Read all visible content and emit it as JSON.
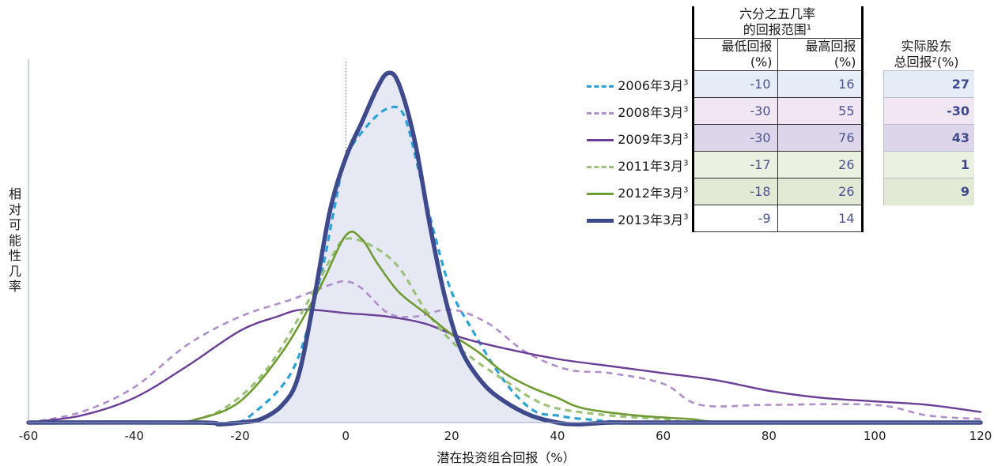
{
  "chart_data": {
    "type": "line",
    "ylabel": "相对可能性几率",
    "xlabel": "潜在投资组合回报（%）",
    "xlim": [
      -60,
      120
    ],
    "x_ticks": [
      "-60",
      "-40",
      "-20",
      "0",
      "20",
      "40",
      "60",
      "80",
      "100",
      "120"
    ],
    "zero_line": "dotted",
    "grid": false,
    "series": [
      {
        "name": "2006年3月",
        "color": "#2aa2d6",
        "dash": "dashed",
        "points": [
          [
            -60,
            0
          ],
          [
            -30,
            0
          ],
          [
            -22,
            0
          ],
          [
            -18,
            0.02
          ],
          [
            -10,
            0.15
          ],
          [
            -5,
            0.4
          ],
          [
            -2,
            0.62
          ],
          [
            0,
            0.75
          ],
          [
            4,
            0.84
          ],
          [
            8,
            0.89
          ],
          [
            11,
            0.87
          ],
          [
            14,
            0.7
          ],
          [
            17,
            0.52
          ],
          [
            20,
            0.37
          ],
          [
            24,
            0.26
          ],
          [
            28,
            0.16
          ],
          [
            32,
            0.08
          ],
          [
            36,
            0.03
          ],
          [
            40,
            0.02
          ],
          [
            45,
            0.01
          ],
          [
            60,
            0
          ],
          [
            120,
            0
          ]
        ]
      },
      {
        "name": "2008年3月",
        "color": "#b08ec9",
        "dash": "dashed",
        "points": [
          [
            -60,
            0
          ],
          [
            -50,
            0.03
          ],
          [
            -40,
            0.1
          ],
          [
            -30,
            0.22
          ],
          [
            -20,
            0.3
          ],
          [
            -10,
            0.35
          ],
          [
            -3,
            0.39
          ],
          [
            0,
            0.4
          ],
          [
            3,
            0.38
          ],
          [
            8,
            0.31
          ],
          [
            13,
            0.3
          ],
          [
            20,
            0.32
          ],
          [
            27,
            0.28
          ],
          [
            34,
            0.2
          ],
          [
            42,
            0.15
          ],
          [
            50,
            0.14
          ],
          [
            60,
            0.11
          ],
          [
            67,
            0.05
          ],
          [
            80,
            0.05
          ],
          [
            100,
            0.05
          ],
          [
            110,
            0.02
          ],
          [
            120,
            0.01
          ]
        ]
      },
      {
        "name": "2009年3月",
        "color": "#6a3d97",
        "dash": "solid",
        "points": [
          [
            -60,
            0
          ],
          [
            -50,
            0.02
          ],
          [
            -40,
            0.07
          ],
          [
            -30,
            0.16
          ],
          [
            -20,
            0.26
          ],
          [
            -13,
            0.3
          ],
          [
            -8,
            0.32
          ],
          [
            0,
            0.31
          ],
          [
            8,
            0.3
          ],
          [
            15,
            0.28
          ],
          [
            22,
            0.24
          ],
          [
            30,
            0.21
          ],
          [
            40,
            0.18
          ],
          [
            50,
            0.16
          ],
          [
            60,
            0.14
          ],
          [
            70,
            0.12
          ],
          [
            80,
            0.09
          ],
          [
            90,
            0.07
          ],
          [
            100,
            0.06
          ],
          [
            110,
            0.05
          ],
          [
            120,
            0.03
          ]
        ]
      },
      {
        "name": "2011年3月",
        "color": "#9cc27a",
        "dash": "dashed",
        "points": [
          [
            -60,
            0
          ],
          [
            -35,
            0
          ],
          [
            -28,
            0.01
          ],
          [
            -22,
            0.05
          ],
          [
            -15,
            0.15
          ],
          [
            -8,
            0.32
          ],
          [
            -3,
            0.46
          ],
          [
            0,
            0.52
          ],
          [
            5,
            0.5
          ],
          [
            10,
            0.44
          ],
          [
            15,
            0.32
          ],
          [
            20,
            0.23
          ],
          [
            25,
            0.17
          ],
          [
            30,
            0.12
          ],
          [
            35,
            0.07
          ],
          [
            40,
            0.04
          ],
          [
            50,
            0.02
          ],
          [
            60,
            0.01
          ],
          [
            70,
            0
          ],
          [
            120,
            0
          ]
        ]
      },
      {
        "name": "2012年3月",
        "color": "#6e9b32",
        "dash": "solid",
        "points": [
          [
            -60,
            0
          ],
          [
            -35,
            0
          ],
          [
            -28,
            0.01
          ],
          [
            -20,
            0.06
          ],
          [
            -12,
            0.2
          ],
          [
            -5,
            0.38
          ],
          [
            0,
            0.53
          ],
          [
            3,
            0.52
          ],
          [
            6,
            0.45
          ],
          [
            10,
            0.37
          ],
          [
            15,
            0.31
          ],
          [
            20,
            0.25
          ],
          [
            25,
            0.2
          ],
          [
            30,
            0.14
          ],
          [
            35,
            0.1
          ],
          [
            40,
            0.07
          ],
          [
            45,
            0.04
          ],
          [
            55,
            0.02
          ],
          [
            65,
            0.01
          ],
          [
            75,
            0
          ],
          [
            120,
            0
          ]
        ]
      },
      {
        "name": "2013年3月",
        "color": "#3e4a8c",
        "dash": "solid",
        "fill": true,
        "points": [
          [
            -60,
            0
          ],
          [
            -28,
            0
          ],
          [
            -24,
            -0.005
          ],
          [
            -20,
            0
          ],
          [
            -16,
            0.01
          ],
          [
            -12,
            0.05
          ],
          [
            -9,
            0.13
          ],
          [
            -6,
            0.35
          ],
          [
            -3,
            0.6
          ],
          [
            0,
            0.75
          ],
          [
            3,
            0.85
          ],
          [
            6,
            0.95
          ],
          [
            8,
            0.99
          ],
          [
            10,
            0.96
          ],
          [
            13,
            0.8
          ],
          [
            16,
            0.55
          ],
          [
            19,
            0.34
          ],
          [
            22,
            0.2
          ],
          [
            26,
            0.11
          ],
          [
            30,
            0.06
          ],
          [
            35,
            0.02
          ],
          [
            40,
            0
          ],
          [
            44,
            -0.005
          ],
          [
            50,
            0
          ],
          [
            60,
            0
          ],
          [
            120,
            0
          ]
        ]
      }
    ]
  },
  "legend_table": {
    "group_header": [
      "六分之五几率",
      "的回报范围¹"
    ],
    "col_min": [
      "最低回报",
      "(%)"
    ],
    "col_max": [
      "最高回报",
      "(%)"
    ],
    "col_actual": [
      "实际股东",
      "总回报²(%)"
    ],
    "rows": [
      {
        "name": "2006年3月",
        "sup": "3",
        "min": "-10",
        "max": "16",
        "actual": "27",
        "color": "#2aa2d6",
        "dash": "dashed",
        "bg": "#e5eef8"
      },
      {
        "name": "2008年3月",
        "sup": "3",
        "min": "-30",
        "max": "55",
        "actual": "-30",
        "color": "#b08ec9",
        "dash": "dashed",
        "bg": "#f0e7f3"
      },
      {
        "name": "2009年3月",
        "sup": "3",
        "min": "-30",
        "max": "76",
        "actual": "43",
        "color": "#6a3d97",
        "dash": "solid",
        "bg": "#ddd6ea"
      },
      {
        "name": "2011年3月",
        "sup": "3",
        "min": "-17",
        "max": "26",
        "actual": "1",
        "color": "#9cc27a",
        "dash": "dashed",
        "bg": "#eaf1e1"
      },
      {
        "name": "2012年3月",
        "sup": "3",
        "min": "-18",
        "max": "26",
        "actual": "9",
        "color": "#6e9b32",
        "dash": "solid",
        "bg": "#e2ead6"
      },
      {
        "name": "2013年3月",
        "sup": "3",
        "min": "-9",
        "max": "14",
        "actual": "",
        "color": "#3e4a8c",
        "dash": "solid",
        "bg": "#ffffff"
      }
    ]
  }
}
